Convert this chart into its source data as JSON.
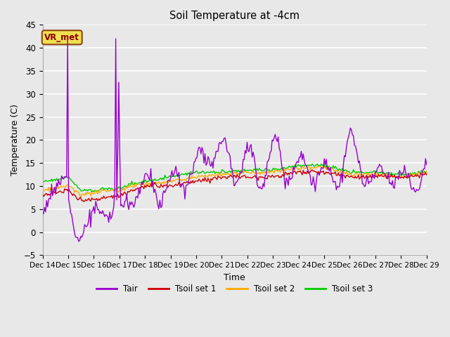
{
  "title": "Soil Temperature at -4cm",
  "xlabel": "Time",
  "ylabel": "Temperature (C)",
  "ylim": [
    -5,
    45
  ],
  "yticks": [
    -5,
    0,
    5,
    10,
    15,
    20,
    25,
    30,
    35,
    40,
    45
  ],
  "background_color": "#e8e8e8",
  "grid_color": "#ffffff",
  "annotation_text": "VR_met",
  "annotation_bg": "#f0e050",
  "annotation_border": "#8b4513",
  "series": {
    "Tair": {
      "color": "#9900cc",
      "linewidth": 1.0
    },
    "Tsoil set 1": {
      "color": "#cc0000",
      "linewidth": 1.0
    },
    "Tsoil set 2": {
      "color": "#ffaa00",
      "linewidth": 1.0
    },
    "Tsoil set 3": {
      "color": "#00cc00",
      "linewidth": 1.0
    }
  },
  "xticklabels": [
    "Dec 14",
    "Dec 15",
    "Dec 16",
    "Dec 17",
    "Dec 18",
    "Dec 19",
    "Dec 20",
    "Dec 21",
    "Dec 22",
    "Dec 23",
    "Dec 24",
    "Dec 25",
    "Dec 26",
    "Dec 27",
    "Dec 28",
    "Dec 29"
  ],
  "xtick_positions": [
    0,
    24,
    48,
    72,
    96,
    120,
    144,
    168,
    192,
    216,
    240,
    264,
    288,
    312,
    336,
    360
  ]
}
